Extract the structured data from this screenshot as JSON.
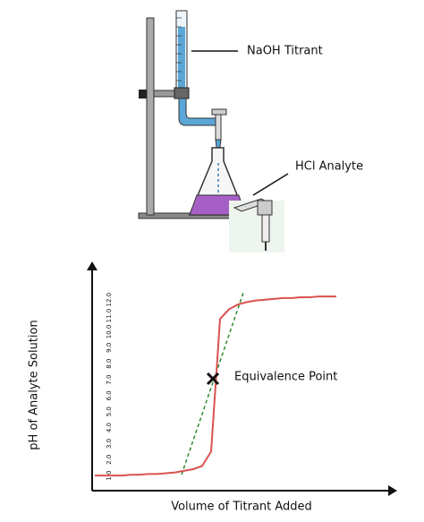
{
  "diagram": {
    "labels": {
      "titrant": "NaOH Titrant",
      "analyte": "HCl Analyte"
    }
  },
  "chart_data": {
    "type": "line",
    "x_label": "Volume of Titrant Added",
    "y_label": "pH of Analyte Solution",
    "annotation": "Equivalence Point",
    "categories": [
      null,
      null,
      null,
      null,
      null,
      null,
      null,
      null,
      null,
      null,
      null,
      null,
      null,
      null,
      null,
      null,
      null,
      null,
      null,
      null,
      null,
      null,
      null,
      null,
      null,
      null,
      null,
      null
    ],
    "series": [
      {
        "color": "#d9534f",
        "values": [
          1.0,
          1.0,
          1.0,
          1.0,
          1.05,
          1.05,
          1.1,
          1.1,
          1.15,
          1.2,
          1.3,
          1.4,
          1.6,
          2.5,
          10.8,
          11.4,
          11.7,
          11.85,
          11.95,
          12.0,
          12.05,
          12.1,
          12.1,
          12.15,
          12.15,
          12.2,
          12.2,
          12.2
        ]
      }
    ],
    "ylim": [
      0,
      14
    ],
    "yticks": [
      {
        "value": 1,
        "label": "1.0"
      },
      {
        "value": 2,
        "label": "2.0"
      },
      {
        "value": 3,
        "label": "3.0"
      },
      {
        "value": 4,
        "label": "4.0"
      },
      {
        "value": 5,
        "label": "5.0"
      },
      {
        "value": 6,
        "label": "6.0"
      },
      {
        "value": 7,
        "label": "7.0"
      },
      {
        "value": 8,
        "label": "8.0"
      },
      {
        "value": 9,
        "label": "9.0"
      },
      {
        "value": 10,
        "label": "10.0"
      },
      {
        "value": 11,
        "label": "11.0"
      },
      {
        "value": 12,
        "label": "12.0"
      }
    ],
    "grid": false
  }
}
